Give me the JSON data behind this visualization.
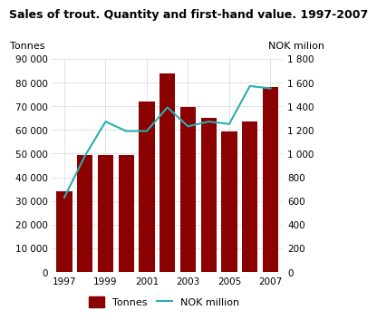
{
  "title": "Sales of trout. Quantity and first-hand value. 1997-2007",
  "years": [
    1997,
    1998,
    1999,
    2000,
    2001,
    2002,
    2003,
    2004,
    2005,
    2006,
    2007
  ],
  "tonnes": [
    34000,
    49500,
    49500,
    49500,
    72000,
    84000,
    69500,
    65000,
    59500,
    63500,
    78000
  ],
  "nok_million": [
    630,
    980,
    1270,
    1190,
    1190,
    1390,
    1230,
    1270,
    1250,
    1570,
    1550
  ],
  "bar_color": "#8B0000",
  "line_color": "#2AAEAE",
  "label_left": "Tonnes",
  "label_right": "NOK milion",
  "ylim_left": [
    0,
    90000
  ],
  "ylim_right": [
    0,
    1800
  ],
  "yticks_left": [
    0,
    10000,
    20000,
    30000,
    40000,
    50000,
    60000,
    70000,
    80000,
    90000
  ],
  "ytick_labels_left": [
    "0",
    "10 000",
    "20 000",
    "30 000",
    "40 000",
    "50 000",
    "60 000",
    "70 000",
    "80 000",
    "90 000"
  ],
  "yticks_right": [
    0,
    200,
    400,
    600,
    800,
    1000,
    1200,
    1400,
    1600,
    1800
  ],
  "ytick_labels_right": [
    "0",
    "200",
    "400",
    "600",
    "800",
    "1 000",
    "1 200",
    "1 400",
    "1 600",
    "1 800"
  ],
  "xtick_labels": [
    "1997",
    "1999",
    "2001",
    "2003",
    "2005",
    "2007"
  ],
  "legend_tonnes": "Tonnes",
  "legend_nok": "NOK million",
  "background_color": "#ffffff",
  "grid_color": "#d0d8e0",
  "title_fontsize": 9,
  "label_fontsize": 8,
  "tick_fontsize": 7.5,
  "legend_fontsize": 8
}
